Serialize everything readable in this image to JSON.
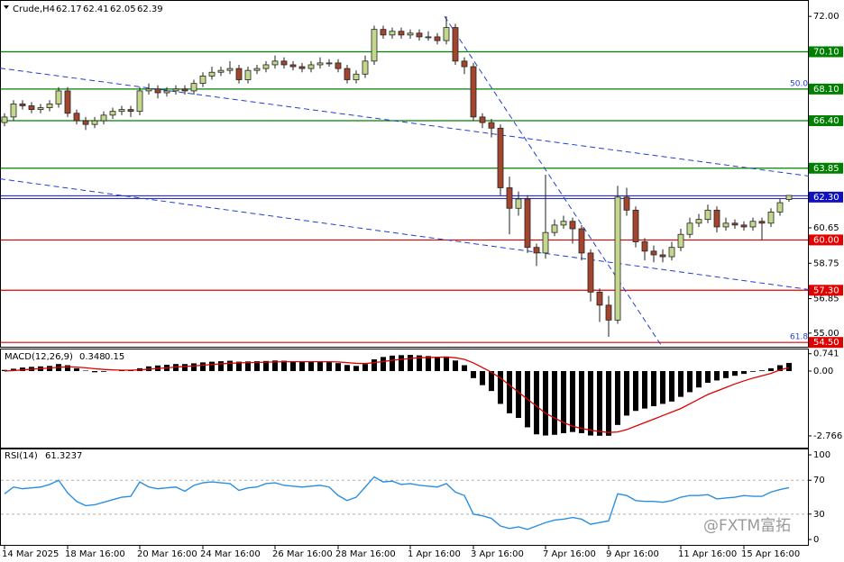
{
  "watermark": "@FXTM富拓",
  "chart_data": [
    {
      "type": "candlestick",
      "title": "Crude,H4",
      "categories": [
        "14 Mar 2025",
        null,
        null,
        null,
        null,
        null,
        null,
        "18 Mar 16:00",
        null,
        null,
        null,
        null,
        null,
        null,
        null,
        "20 Mar 16:00",
        null,
        null,
        null,
        null,
        null,
        null,
        "24 Mar 16:00",
        null,
        null,
        null,
        null,
        null,
        null,
        null,
        "26 Mar 16:00",
        null,
        null,
        null,
        null,
        null,
        null,
        "28 Mar 16:00",
        null,
        null,
        null,
        null,
        null,
        null,
        null,
        "1 Apr 16:00",
        null,
        null,
        null,
        null,
        null,
        null,
        "3 Apr 16:00",
        null,
        null,
        null,
        null,
        null,
        null,
        null,
        "7 Apr 16:00",
        null,
        null,
        null,
        null,
        null,
        null,
        "9 Apr 16:00",
        null,
        null,
        null,
        null,
        null,
        null,
        null,
        "11 Apr 16:00",
        null,
        null,
        null,
        null,
        null,
        null,
        "15 Apr 16:00",
        null,
        null,
        null,
        null,
        null
      ],
      "open": [
        66.3,
        66.6,
        67.3,
        67.2,
        67.0,
        67.1,
        67.3,
        68.0,
        66.8,
        66.4,
        66.2,
        66.4,
        66.7,
        66.9,
        67.0,
        66.9,
        68.0,
        68.1,
        67.9,
        68.0,
        68.1,
        68.0,
        68.4,
        68.8,
        69.0,
        69.1,
        69.2,
        68.6,
        69.1,
        69.2,
        69.4,
        69.6,
        69.4,
        69.3,
        69.2,
        69.4,
        69.5,
        69.5,
        69.2,
        68.6,
        68.9,
        69.6,
        71.3,
        71.0,
        71.2,
        71.0,
        71.1,
        70.9,
        70.9,
        70.7,
        71.4,
        69.6,
        69.3,
        66.6,
        66.3,
        66.0,
        62.8,
        61.7,
        62.2,
        59.6,
        59.3,
        60.4,
        60.8,
        61.0,
        60.6,
        59.3,
        57.2,
        56.5,
        55.7,
        62.3,
        61.6,
        59.9,
        59.4,
        59.2,
        59.1,
        59.6,
        60.3,
        60.9,
        61.1,
        61.6,
        60.7,
        60.9,
        60.8,
        60.7,
        61.0,
        60.9,
        61.5,
        62.17
      ],
      "high": [
        66.8,
        67.5,
        67.5,
        67.4,
        67.3,
        67.5,
        68.2,
        68.2,
        67.0,
        66.6,
        66.6,
        66.9,
        67.1,
        67.2,
        67.2,
        68.2,
        68.4,
        68.3,
        68.2,
        68.3,
        68.3,
        68.6,
        69.0,
        69.3,
        69.3,
        69.6,
        69.4,
        69.3,
        69.4,
        69.6,
        69.9,
        69.8,
        69.6,
        69.5,
        69.6,
        69.8,
        69.7,
        69.7,
        69.4,
        69.1,
        69.9,
        71.5,
        71.5,
        71.4,
        71.4,
        71.3,
        71.3,
        71.2,
        71.1,
        72.0,
        71.6,
        69.8,
        69.5,
        66.8,
        66.5,
        66.2,
        63.4,
        62.6,
        62.4,
        59.8,
        63.5,
        61.1,
        61.3,
        61.2,
        60.8,
        59.5,
        57.4,
        57.0,
        62.9,
        62.8,
        61.8,
        60.1,
        59.7,
        59.5,
        59.9,
        60.6,
        61.2,
        61.4,
        61.9,
        61.8,
        61.2,
        61.1,
        61.0,
        61.2,
        61.2,
        61.7,
        62.2,
        62.41
      ],
      "low": [
        66.1,
        66.4,
        67.0,
        66.8,
        66.8,
        66.9,
        67.1,
        66.6,
        66.2,
        65.9,
        66.0,
        66.2,
        66.5,
        66.7,
        66.6,
        66.7,
        67.8,
        67.6,
        67.7,
        67.8,
        67.8,
        67.8,
        68.2,
        68.6,
        68.8,
        68.9,
        68.4,
        68.4,
        68.9,
        69.0,
        69.2,
        69.2,
        69.1,
        69.0,
        69.0,
        69.2,
        69.3,
        69.0,
        68.4,
        68.4,
        68.7,
        69.4,
        70.8,
        70.8,
        70.8,
        70.8,
        70.7,
        70.7,
        70.5,
        70.5,
        69.4,
        68.9,
        66.4,
        66.0,
        65.5,
        62.4,
        60.3,
        61.3,
        59.3,
        58.6,
        59.0,
        60.2,
        60.6,
        59.8,
        58.9,
        56.7,
        55.6,
        54.8,
        55.5,
        61.3,
        59.6,
        58.9,
        58.8,
        58.8,
        58.9,
        59.4,
        60.1,
        60.7,
        60.9,
        60.4,
        60.5,
        60.6,
        60.5,
        60.5,
        60.0,
        60.7,
        61.3,
        62.05
      ],
      "close": [
        66.6,
        67.3,
        67.2,
        67.0,
        67.1,
        67.3,
        68.0,
        66.8,
        66.4,
        66.2,
        66.4,
        66.7,
        66.9,
        67.0,
        66.9,
        68.0,
        68.1,
        67.9,
        68.0,
        68.1,
        68.0,
        68.4,
        68.8,
        69.0,
        69.1,
        69.2,
        68.6,
        69.1,
        69.2,
        69.4,
        69.6,
        69.4,
        69.3,
        69.2,
        69.4,
        69.5,
        69.5,
        69.2,
        68.6,
        68.9,
        69.6,
        71.3,
        71.0,
        71.2,
        71.0,
        71.1,
        70.9,
        70.9,
        70.7,
        71.4,
        69.6,
        69.3,
        66.6,
        66.3,
        66.0,
        62.8,
        61.7,
        62.2,
        59.6,
        59.3,
        60.4,
        60.8,
        61.0,
        60.6,
        59.3,
        57.2,
        56.5,
        55.7,
        62.3,
        61.6,
        59.9,
        59.4,
        59.2,
        59.1,
        59.6,
        60.3,
        60.9,
        61.1,
        61.6,
        60.7,
        60.9,
        60.8,
        60.7,
        61.0,
        60.9,
        61.5,
        62.0,
        62.39
      ],
      "up_color": "#c3d88c",
      "down_color": "#a3452e",
      "ylim": [
        54.22,
        72.83
      ],
      "yticks": [
        {
          "value": 72,
          "label": "72.00"
        },
        {
          "value": 60.65,
          "label": "60.65"
        },
        {
          "value": 58.75,
          "label": "58.75"
        },
        {
          "value": 56.85,
          "label": "56.85"
        },
        {
          "value": 55,
          "label": "55.00"
        }
      ],
      "levels": [
        {
          "value": 70.1,
          "label": "70.10",
          "color": "#008000"
        },
        {
          "value": 68.1,
          "label": "68.10",
          "color": "#008000",
          "fib": "50.0"
        },
        {
          "value": 66.4,
          "label": "66.40",
          "color": "#008000"
        },
        {
          "value": 63.85,
          "label": "63.85",
          "color": "#008000"
        },
        {
          "value": 62.3,
          "label": "62.30",
          "color": "#1010c0"
        },
        {
          "value": 60,
          "label": "60.00",
          "color": "#e00000"
        },
        {
          "value": 57.3,
          "label": "57.30",
          "color": "#e00000"
        },
        {
          "value": 54.5,
          "label": "54.50",
          "color": "#e00000",
          "fib": "61.8"
        }
      ],
      "trendlines": [
        {
          "x": [
            -0.5,
            89.2
          ],
          "y": [
            69.22,
            63.43
          ]
        },
        {
          "x": [
            -0.5,
            89.2
          ],
          "y": [
            63.28,
            57.34
          ]
        },
        {
          "x": [
            48.8,
            73
          ],
          "y": [
            72.0,
            54.22
          ]
        }
      ],
      "trendline_color": "#2040d0"
    },
    {
      "type": "macd",
      "title": "MACD(12,26,9)",
      "histogram": {
        "color": "#000000",
        "values": [
          0.05,
          0.1,
          0.15,
          0.18,
          0.2,
          0.22,
          0.3,
          0.25,
          0.12,
          0.02,
          -0.05,
          -0.03,
          0.0,
          0.02,
          0.03,
          0.12,
          0.2,
          0.24,
          0.27,
          0.3,
          0.3,
          0.33,
          0.37,
          0.4,
          0.42,
          0.44,
          0.4,
          0.41,
          0.42,
          0.43,
          0.45,
          0.44,
          0.42,
          0.4,
          0.4,
          0.4,
          0.38,
          0.34,
          0.26,
          0.22,
          0.3,
          0.5,
          0.6,
          0.66,
          0.68,
          0.69,
          0.67,
          0.64,
          0.6,
          0.62,
          0.45,
          0.25,
          -0.3,
          -0.6,
          -0.85,
          -1.4,
          -1.8,
          -2.0,
          -2.4,
          -2.7,
          -2.75,
          -2.72,
          -2.65,
          -2.6,
          -2.65,
          -2.75,
          -2.76,
          -2.76,
          -2.3,
          -1.9,
          -1.7,
          -1.6,
          -1.5,
          -1.4,
          -1.3,
          -1.1,
          -0.9,
          -0.7,
          -0.5,
          -0.4,
          -0.3,
          -0.2,
          -0.12,
          -0.03,
          0.03,
          0.12,
          0.25,
          0.348
        ]
      },
      "signal": {
        "color": "#e00000",
        "values": [
          0.0,
          0.02,
          0.05,
          0.08,
          0.1,
          0.13,
          0.16,
          0.18,
          0.17,
          0.14,
          0.1,
          0.07,
          0.05,
          0.04,
          0.04,
          0.05,
          0.08,
          0.11,
          0.14,
          0.17,
          0.2,
          0.22,
          0.25,
          0.28,
          0.31,
          0.33,
          0.35,
          0.36,
          0.37,
          0.38,
          0.39,
          0.4,
          0.4,
          0.4,
          0.4,
          0.4,
          0.4,
          0.39,
          0.36,
          0.33,
          0.32,
          0.36,
          0.41,
          0.46,
          0.5,
          0.54,
          0.57,
          0.58,
          0.59,
          0.6,
          0.57,
          0.5,
          0.35,
          0.15,
          -0.05,
          -0.3,
          -0.6,
          -0.9,
          -1.2,
          -1.5,
          -1.8,
          -2.0,
          -2.2,
          -2.35,
          -2.45,
          -2.52,
          -2.58,
          -2.62,
          -2.6,
          -2.5,
          -2.35,
          -2.2,
          -2.05,
          -1.9,
          -1.75,
          -1.6,
          -1.4,
          -1.2,
          -1.0,
          -0.85,
          -0.7,
          -0.55,
          -0.42,
          -0.3,
          -0.2,
          -0.1,
          0.05,
          0.15
        ]
      },
      "ylim": [
        -3.267,
        0.923
      ],
      "yticks": [
        0.741,
        {
          "value": 0,
          "label": "0.00"
        },
        -2.766
      ]
    },
    {
      "type": "line",
      "title": "RSI(14)",
      "color": "#2a8fe0",
      "values": [
        54,
        62,
        60,
        61,
        62,
        65,
        70,
        55,
        45,
        40,
        41,
        44,
        47,
        50,
        51,
        68,
        62,
        60,
        61,
        62,
        57,
        64,
        67,
        68,
        67,
        66,
        58,
        61,
        62,
        66,
        67,
        64,
        63,
        62,
        63,
        64,
        62,
        52,
        46,
        50,
        62,
        74,
        68,
        69,
        65,
        66,
        64,
        63,
        62,
        66,
        56,
        52,
        30,
        28,
        25,
        16,
        13,
        15,
        12,
        16,
        20,
        23,
        24,
        26,
        24,
        18,
        20,
        22,
        54,
        52,
        46,
        45,
        45,
        44,
        46,
        50,
        52,
        52,
        53,
        48,
        49,
        50,
        52,
        51,
        51,
        56,
        59,
        61.3237
      ],
      "ylim": [
        -7.4,
        106.4
      ],
      "yticks": [
        100,
        70,
        30,
        0
      ],
      "grid": true
    }
  ]
}
